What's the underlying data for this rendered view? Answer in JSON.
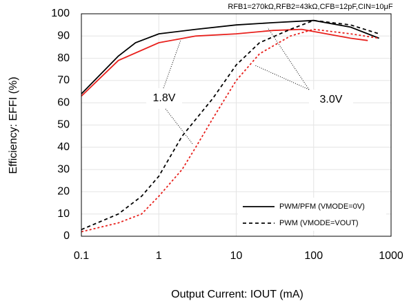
{
  "chart_data": {
    "type": "line",
    "subtitle": "RFB1=270kΩ,RFB2=43kΩ,CFB=12pF,CIN=10μF",
    "x_label": "Output Current: IOUT (mA)",
    "y_label": "Efficiency: EFFI (%)",
    "log_x": true,
    "grid": true,
    "xlim": [
      0.1,
      1000
    ],
    "xticks": [
      0.1,
      1,
      10,
      100,
      1000
    ],
    "ylim": [
      0,
      100
    ],
    "yticks": [
      0,
      10,
      20,
      30,
      40,
      50,
      60,
      70,
      80,
      90,
      100
    ],
    "legend": [
      {
        "label": "PWM/PFM (VMODE=0V)",
        "dash": "none"
      },
      {
        "label": "PWM (VMODE=VOUT)",
        "dash": "5,4"
      }
    ],
    "annotations": [
      "1.8V",
      "3.0V"
    ],
    "series": [
      {
        "color": "#000000",
        "dash": "none",
        "x": [
          0.1,
          0.3,
          0.5,
          1,
          3,
          10,
          30,
          100,
          300,
          700
        ],
        "values": [
          64,
          81,
          87,
          91,
          93,
          95,
          96,
          97,
          94,
          89
        ]
      },
      {
        "color": "#e8201c",
        "dash": "none",
        "x": [
          0.1,
          0.3,
          1,
          3,
          10,
          30,
          70,
          100,
          300,
          500
        ],
        "values": [
          63,
          79,
          87,
          90,
          91,
          92.5,
          93,
          92,
          89,
          88
        ]
      },
      {
        "color": "#000000",
        "dash": "5,4",
        "x": [
          0.1,
          0.3,
          0.6,
          1,
          2,
          5,
          10,
          20,
          50,
          100,
          300,
          700
        ],
        "values": [
          3,
          10,
          18,
          27,
          45,
          62,
          77,
          87,
          93,
          97,
          95,
          91
        ]
      },
      {
        "color": "#e8201c",
        "dash": "3,3",
        "x": [
          0.1,
          0.3,
          0.6,
          1,
          2,
          3,
          5,
          10,
          20,
          50,
          100,
          300,
          700
        ],
        "values": [
          2,
          6,
          10,
          18,
          30,
          40,
          53,
          70,
          82,
          90,
          93,
          91,
          89
        ]
      }
    ]
  }
}
